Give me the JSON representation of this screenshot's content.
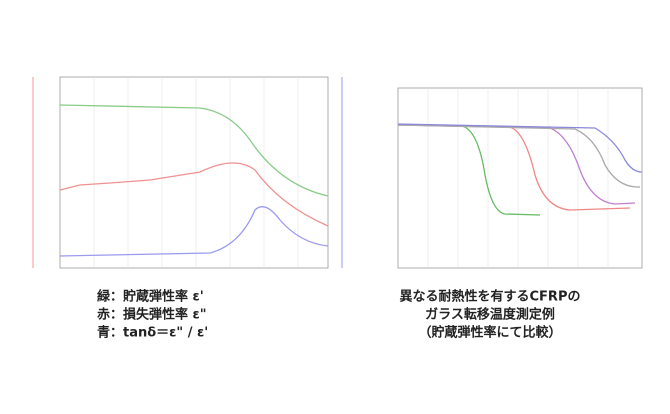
{
  "left_caption": {
    "lines": [
      "緑：貯蔵弾性率 ε'",
      "赤：損失弾性率 ε\"",
      "青：tanδ＝ε\" / ε'"
    ]
  },
  "right_caption": {
    "lines": [
      "異なる耐熱性を有するCFRPの",
      "ガラス転移温度測定例",
      "（貯蔵弾性率にて比較）"
    ]
  }
}
